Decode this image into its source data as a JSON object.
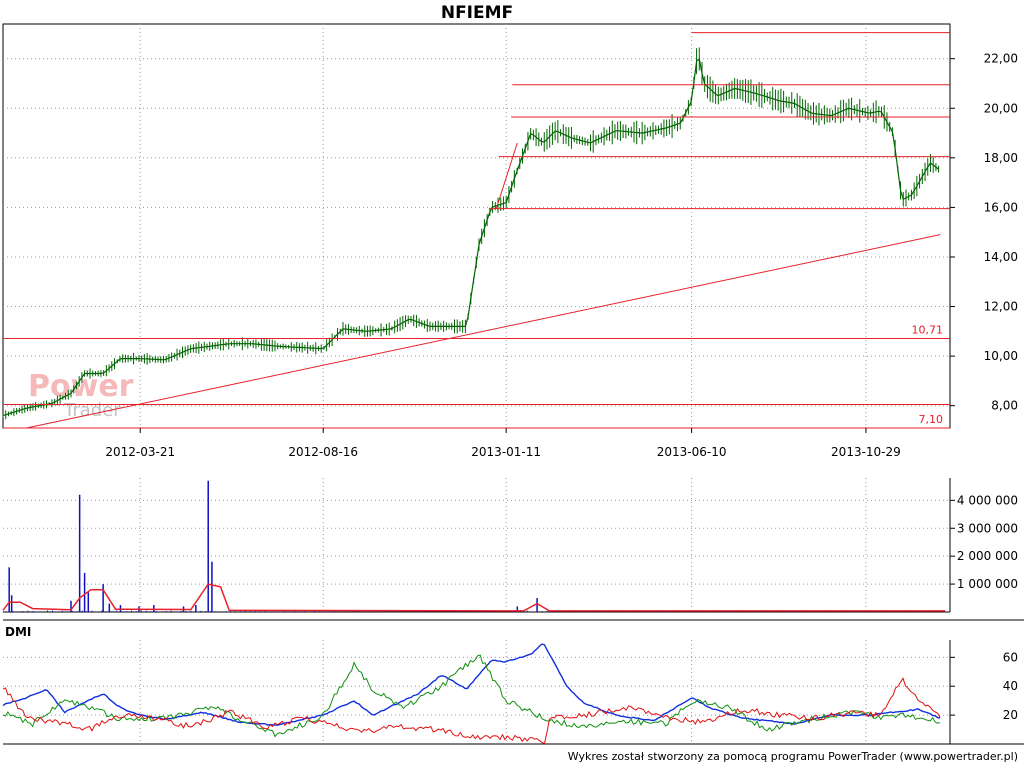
{
  "title": "NFIEMF",
  "footer": "Wykres został stworzony za pomocą programu PowerTrader (www.powertrader.pl)",
  "watermark": {
    "line1": "Power",
    "line2": "Trader"
  },
  "colors": {
    "candle": "#006400",
    "level": "#e8202a",
    "volume": "#1010c0",
    "volume_avg": "#e8202a",
    "dmi_adx": "#1030e0",
    "dmi_plus": "#109010",
    "dmi_minus": "#e01010",
    "grid": "#999999"
  },
  "chart_data": [
    {
      "type": "line",
      "id": "price",
      "title": "NFIEMF",
      "x_range": [
        "2011-12-01",
        "2014-01-05"
      ],
      "x_ticks": [
        "2012-03-21",
        "2012-08-16",
        "2013-01-11",
        "2013-06-10",
        "2013-10-29"
      ],
      "ylim": [
        7.1,
        23.4
      ],
      "y_ticks": [
        "8,00",
        "10,00",
        "12,00",
        "14,00",
        "16,00",
        "18,00",
        "20,00",
        "22,00"
      ],
      "y_tick_values": [
        8,
        10,
        12,
        14,
        16,
        18,
        20,
        22
      ],
      "grid": true,
      "series": [
        {
          "points": [
            [
              "2011-12-01",
              7.6
            ],
            [
              "2011-12-20",
              7.9
            ],
            [
              "2012-01-10",
              8.1
            ],
            [
              "2012-01-25",
              8.5
            ],
            [
              "2012-02-05",
              9.3
            ],
            [
              "2012-02-20",
              9.3
            ],
            [
              "2012-03-05",
              9.9
            ],
            [
              "2012-03-21",
              9.9
            ],
            [
              "2012-04-10",
              9.85
            ],
            [
              "2012-05-01",
              10.3
            ],
            [
              "2012-06-01",
              10.5
            ],
            [
              "2012-06-20",
              10.5
            ],
            [
              "2012-07-10",
              10.4
            ],
            [
              "2012-08-16",
              10.3
            ],
            [
              "2012-09-01",
              11.1
            ],
            [
              "2012-09-20",
              11.0
            ],
            [
              "2012-10-10",
              11.1
            ],
            [
              "2012-10-25",
              11.5
            ],
            [
              "2012-11-10",
              11.2
            ],
            [
              "2012-12-10",
              11.2
            ],
            [
              "2012-12-20",
              14.5
            ],
            [
              "2012-12-30",
              16.0
            ],
            [
              "2013-01-11",
              16.2
            ],
            [
              "2013-01-20",
              17.5
            ],
            [
              "2013-01-31",
              19.0
            ],
            [
              "2013-02-10",
              18.6
            ],
            [
              "2013-02-20",
              19.1
            ],
            [
              "2013-03-05",
              18.8
            ],
            [
              "2013-03-20",
              18.6
            ],
            [
              "2013-04-10",
              19.1
            ],
            [
              "2013-05-01",
              19.0
            ],
            [
              "2013-05-20",
              19.2
            ],
            [
              "2013-06-01",
              19.4
            ],
            [
              "2013-06-10",
              20.3
            ],
            [
              "2013-06-15",
              22.3
            ],
            [
              "2013-06-20",
              21.0
            ],
            [
              "2013-07-01",
              20.5
            ],
            [
              "2013-07-15",
              20.8
            ],
            [
              "2013-08-01",
              20.6
            ],
            [
              "2013-08-20",
              20.3
            ],
            [
              "2013-09-01",
              20.2
            ],
            [
              "2013-09-15",
              19.8
            ],
            [
              "2013-10-01",
              19.7
            ],
            [
              "2013-10-15",
              20.0
            ],
            [
              "2013-11-01",
              19.8
            ],
            [
              "2013-11-10",
              19.9
            ],
            [
              "2013-11-20",
              19.0
            ],
            [
              "2013-11-27",
              16.3
            ],
            [
              "2013-12-05",
              16.5
            ],
            [
              "2013-12-20",
              17.8
            ],
            [
              "2013-12-28",
              17.5
            ]
          ]
        }
      ],
      "horizontal_levels": [
        {
          "value": 7.1,
          "label": "7,10",
          "from": "2011-12-01"
        },
        {
          "value": 8.05,
          "label": "",
          "from": "2011-12-01"
        },
        {
          "value": 10.71,
          "label": "10,71",
          "from": "2011-12-01"
        },
        {
          "value": 15.95,
          "label": "",
          "from": "2012-12-28"
        },
        {
          "value": 18.05,
          "label": "",
          "from": "2013-01-05"
        },
        {
          "value": 19.65,
          "label": "",
          "from": "2013-01-15"
        },
        {
          "value": 20.95,
          "label": "",
          "from": "2013-01-16"
        },
        {
          "value": 23.05,
          "label": "",
          "from": "2013-06-10"
        }
      ],
      "trend_lines": [
        {
          "from": [
            "2011-12-20",
            7.1
          ],
          "to": [
            "2013-12-28",
            14.9
          ]
        },
        {
          "from": [
            "2013-01-03",
            15.95
          ],
          "to": [
            "2013-01-20",
            18.6
          ]
        }
      ]
    },
    {
      "type": "bar",
      "id": "volume",
      "ylim": [
        0,
        4800000
      ],
      "y_ticks": [
        "1 000 000",
        "2 000 000",
        "3 000 000",
        "4 000 000"
      ],
      "y_tick_values": [
        1000000,
        2000000,
        3000000,
        4000000
      ],
      "grid": true,
      "spikes": [
        [
          "2011-12-06",
          1600000
        ],
        [
          "2011-12-08",
          600000
        ],
        [
          "2012-01-25",
          400000
        ],
        [
          "2012-02-01",
          4200000
        ],
        [
          "2012-02-05",
          1400000
        ],
        [
          "2012-02-08",
          700000
        ],
        [
          "2012-02-20",
          1000000
        ],
        [
          "2012-02-25",
          300000
        ],
        [
          "2012-03-05",
          250000
        ],
        [
          "2012-03-20",
          200000
        ],
        [
          "2012-04-01",
          250000
        ],
        [
          "2012-04-25",
          200000
        ],
        [
          "2012-05-05",
          250000
        ],
        [
          "2012-05-15",
          4700000
        ],
        [
          "2012-05-18",
          1800000
        ],
        [
          "2013-01-20",
          200000
        ],
        [
          "2013-02-05",
          500000
        ]
      ],
      "average_line": [
        [
          "2011-12-01",
          60000
        ],
        [
          "2011-12-06",
          350000
        ],
        [
          "2011-12-15",
          350000
        ],
        [
          "2011-12-25",
          120000
        ],
        [
          "2012-01-25",
          80000
        ],
        [
          "2012-02-01",
          500000
        ],
        [
          "2012-02-10",
          800000
        ],
        [
          "2012-02-20",
          800000
        ],
        [
          "2012-03-01",
          100000
        ],
        [
          "2012-05-01",
          90000
        ],
        [
          "2012-05-15",
          1000000
        ],
        [
          "2012-05-25",
          900000
        ],
        [
          "2012-06-01",
          60000
        ],
        [
          "2013-01-25",
          40000
        ],
        [
          "2013-02-05",
          300000
        ],
        [
          "2013-02-15",
          40000
        ],
        [
          "2014-01-01",
          40000
        ]
      ]
    },
    {
      "type": "line",
      "id": "dmi",
      "title": "DMI",
      "ylim": [
        0,
        72
      ],
      "y_ticks": [
        "20",
        "40",
        "60"
      ],
      "y_tick_values": [
        20,
        40,
        60
      ],
      "grid": true,
      "series": [
        {
          "key": "adx",
          "points": [
            [
              "2011-12-01",
              27
            ],
            [
              "2011-12-20",
              32
            ],
            [
              "2012-01-05",
              38
            ],
            [
              "2012-01-20",
              22
            ],
            [
              "2012-02-20",
              35
            ],
            [
              "2012-03-05",
              25
            ],
            [
              "2012-03-21",
              20
            ],
            [
              "2012-04-10",
              17
            ],
            [
              "2012-05-10",
              22
            ],
            [
              "2012-06-10",
              15
            ],
            [
              "2012-07-10",
              13
            ],
            [
              "2012-08-16",
              20
            ],
            [
              "2012-09-10",
              30
            ],
            [
              "2012-09-25",
              20
            ],
            [
              "2012-10-15",
              28
            ],
            [
              "2012-11-01",
              35
            ],
            [
              "2012-11-20",
              48
            ],
            [
              "2012-12-10",
              38
            ],
            [
              "2012-12-30",
              58
            ],
            [
              "2013-01-11",
              57
            ],
            [
              "2013-01-31",
              62
            ],
            [
              "2013-02-10",
              70
            ],
            [
              "2013-03-01",
              40
            ],
            [
              "2013-03-15",
              28
            ],
            [
              "2013-04-10",
              20
            ],
            [
              "2013-05-10",
              16
            ],
            [
              "2013-06-10",
              32
            ],
            [
              "2013-06-25",
              25
            ],
            [
              "2013-07-20",
              18
            ],
            [
              "2013-09-01",
              14
            ],
            [
              "2013-10-01",
              20
            ],
            [
              "2013-11-01",
              20
            ],
            [
              "2013-11-20",
              22
            ],
            [
              "2013-12-10",
              24
            ],
            [
              "2013-12-28",
              18
            ]
          ]
        },
        {
          "key": "plus_di",
          "points": [
            [
              "2011-12-01",
              22
            ],
            [
              "2011-12-25",
              14
            ],
            [
              "2012-01-20",
              30
            ],
            [
              "2012-02-10",
              25
            ],
            [
              "2012-03-05",
              17
            ],
            [
              "2012-04-10",
              18
            ],
            [
              "2012-05-20",
              25
            ],
            [
              "2012-06-15",
              15
            ],
            [
              "2012-07-10",
              6
            ],
            [
              "2012-08-16",
              20
            ],
            [
              "2012-09-10",
              55
            ],
            [
              "2012-09-25",
              38
            ],
            [
              "2012-10-20",
              25
            ],
            [
              "2012-11-20",
              40
            ],
            [
              "2012-12-20",
              62
            ],
            [
              "2013-01-11",
              30
            ],
            [
              "2013-02-10",
              18
            ],
            [
              "2013-03-10",
              12
            ],
            [
              "2013-04-15",
              16
            ],
            [
              "2013-05-20",
              14
            ],
            [
              "2013-06-12",
              30
            ],
            [
              "2013-07-10",
              25
            ],
            [
              "2013-08-10",
              10
            ],
            [
              "2013-09-20",
              18
            ],
            [
              "2013-10-20",
              22
            ],
            [
              "2013-11-15",
              18
            ],
            [
              "2013-12-01",
              20
            ],
            [
              "2013-12-28",
              16
            ]
          ]
        },
        {
          "key": "minus_di",
          "points": [
            [
              "2011-12-01",
              40
            ],
            [
              "2011-12-20",
              18
            ],
            [
              "2012-01-15",
              15
            ],
            [
              "2012-02-10",
              10
            ],
            [
              "2012-03-01",
              20
            ],
            [
              "2012-04-01",
              18
            ],
            [
              "2012-05-01",
              12
            ],
            [
              "2012-06-01",
              22
            ],
            [
              "2012-07-01",
              12
            ],
            [
              "2012-08-01",
              18
            ],
            [
              "2012-08-16",
              15
            ],
            [
              "2012-09-15",
              8
            ],
            [
              "2012-10-15",
              12
            ],
            [
              "2012-11-15",
              10
            ],
            [
              "2012-12-15",
              5
            ],
            [
              "2013-01-11",
              5
            ],
            [
              "2013-02-01",
              3
            ],
            [
              "2013-02-12",
              2
            ],
            [
              "2013-02-14",
              18
            ],
            [
              "2013-03-15",
              20
            ],
            [
              "2013-04-20",
              25
            ],
            [
              "2013-05-20",
              18
            ],
            [
              "2013-06-20",
              15
            ],
            [
              "2013-07-20",
              24
            ],
            [
              "2013-08-20",
              20
            ],
            [
              "2013-09-20",
              18
            ],
            [
              "2013-10-20",
              22
            ],
            [
              "2013-11-10",
              20
            ],
            [
              "2013-11-27",
              45
            ],
            [
              "2013-12-10",
              30
            ],
            [
              "2013-12-28",
              20
            ]
          ]
        }
      ]
    }
  ]
}
